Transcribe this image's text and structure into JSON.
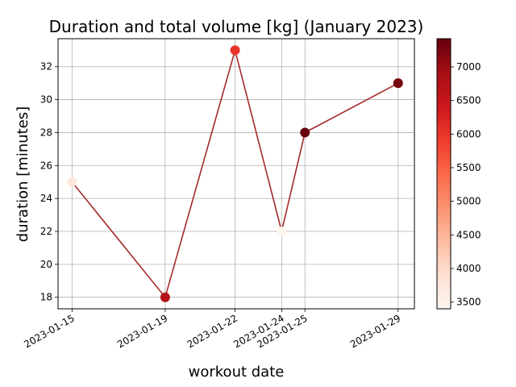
{
  "chart_data": {
    "type": "scatter",
    "title": "Duration and total volume [kg] (January 2023)",
    "xlabel": "workout date",
    "ylabel": "duration [minutes]",
    "x_ticks": [
      "2023-01-15",
      "2023-01-19",
      "2023-01-22",
      "2023-01-24",
      "2023-01-25",
      "2023-01-29"
    ],
    "xlim": [
      "2023-01-14.4",
      "2023-01-29.7"
    ],
    "y_ticks": [
      18,
      20,
      22,
      24,
      26,
      28,
      30,
      32
    ],
    "ylim": [
      17.3,
      33.7
    ],
    "grid": true,
    "line_color": "#a52a2a",
    "colormap": "Reds",
    "colorbar": {
      "ticks": [
        3500,
        4000,
        4500,
        5000,
        5500,
        6000,
        6500,
        7000
      ],
      "range": [
        3400,
        7420
      ]
    },
    "points": [
      {
        "date": "2023-01-15",
        "duration": 25,
        "volume": 3700
      },
      {
        "date": "2023-01-19",
        "duration": 18,
        "volume": 6700
      },
      {
        "date": "2023-01-22",
        "duration": 33,
        "volume": 6000
      },
      {
        "date": "2023-01-24",
        "duration": 22,
        "volume": 3400
      },
      {
        "date": "2023-01-25",
        "duration": 28,
        "volume": 7420
      },
      {
        "date": "2023-01-29",
        "duration": 31,
        "volume": 7300
      }
    ]
  }
}
